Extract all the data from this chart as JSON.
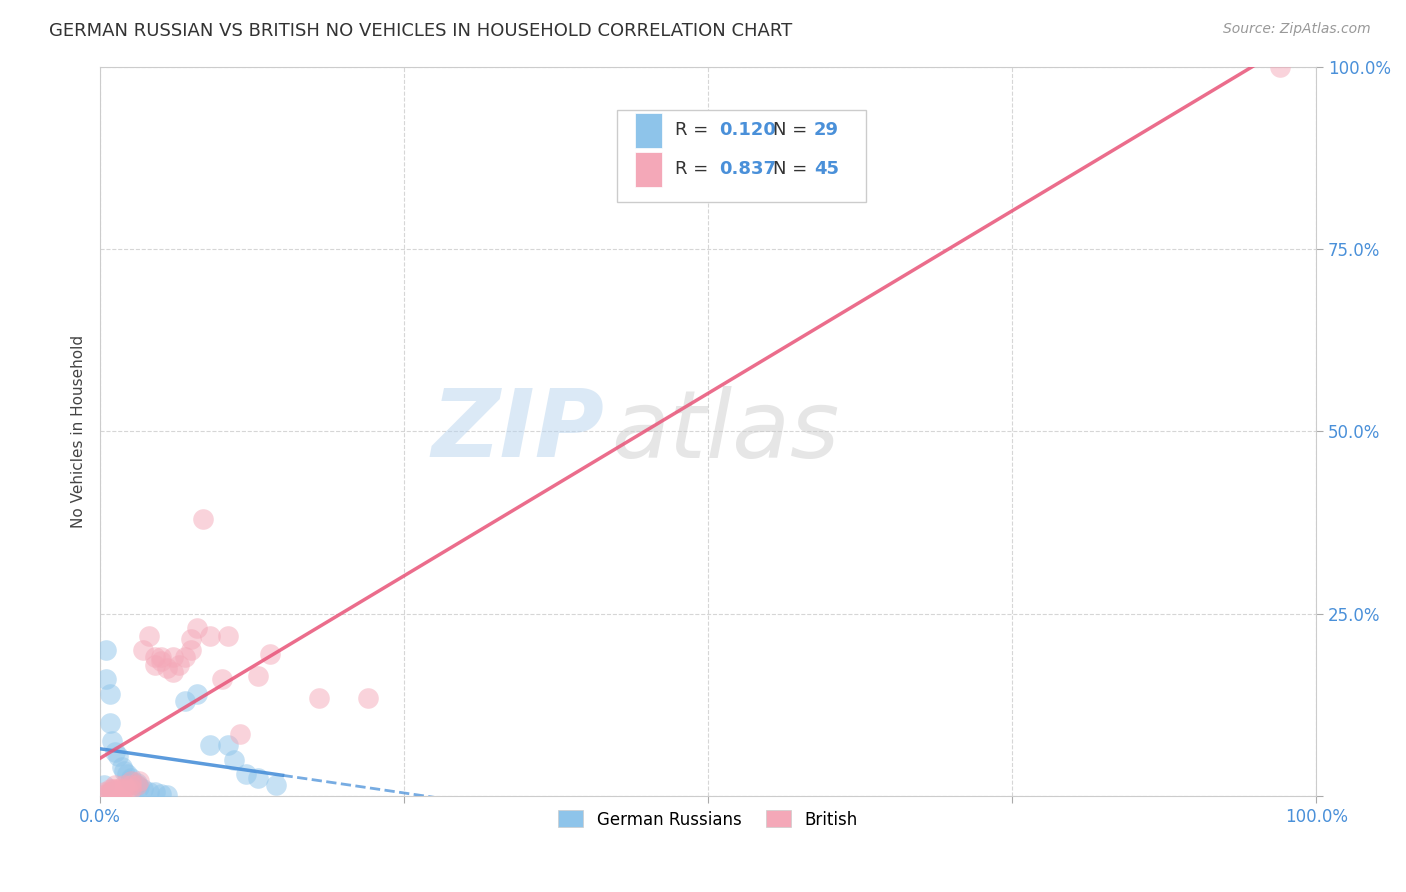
{
  "title": "GERMAN RUSSIAN VS BRITISH NO VEHICLES IN HOUSEHOLD CORRELATION CHART",
  "source": "Source: ZipAtlas.com",
  "ylabel": "No Vehicles in Household",
  "watermark": "ZIPatlas",
  "background_color": "#ffffff",
  "plot_bg_color": "#ffffff",
  "grid_color": "#cccccc",
  "blue_color": "#8ec4ea",
  "pink_color": "#f4a8b8",
  "blue_line_color": "#4a90d9",
  "pink_line_color": "#e85478",
  "german_russian_points": [
    [
      0.5,
      20.0
    ],
    [
      0.5,
      16.0
    ],
    [
      0.8,
      14.0
    ],
    [
      0.8,
      10.0
    ],
    [
      1.0,
      7.5
    ],
    [
      1.2,
      6.0
    ],
    [
      1.5,
      5.5
    ],
    [
      1.8,
      4.0
    ],
    [
      2.0,
      3.5
    ],
    [
      2.2,
      3.0
    ],
    [
      2.5,
      2.5
    ],
    [
      2.5,
      2.0
    ],
    [
      3.0,
      1.8
    ],
    [
      3.0,
      1.5
    ],
    [
      3.2,
      1.2
    ],
    [
      3.5,
      1.0
    ],
    [
      4.0,
      0.5
    ],
    [
      4.5,
      0.5
    ],
    [
      5.0,
      0.3
    ],
    [
      5.5,
      0.2
    ],
    [
      7.0,
      13.0
    ],
    [
      8.0,
      14.0
    ],
    [
      9.0,
      7.0
    ],
    [
      10.5,
      7.0
    ],
    [
      11.0,
      5.0
    ],
    [
      12.0,
      3.0
    ],
    [
      13.0,
      2.5
    ],
    [
      14.5,
      1.5
    ],
    [
      0.3,
      1.5
    ]
  ],
  "british_points": [
    [
      0.3,
      0.5
    ],
    [
      0.5,
      0.3
    ],
    [
      0.8,
      0.5
    ],
    [
      0.8,
      1.0
    ],
    [
      1.0,
      0.5
    ],
    [
      1.0,
      1.0
    ],
    [
      1.2,
      0.5
    ],
    [
      1.2,
      1.0
    ],
    [
      1.2,
      1.5
    ],
    [
      1.5,
      0.5
    ],
    [
      1.5,
      1.0
    ],
    [
      1.8,
      0.5
    ],
    [
      1.8,
      1.0
    ],
    [
      2.0,
      1.0
    ],
    [
      2.0,
      1.5
    ],
    [
      2.2,
      1.0
    ],
    [
      2.5,
      1.0
    ],
    [
      2.5,
      1.5
    ],
    [
      2.5,
      2.0
    ],
    [
      3.0,
      1.5
    ],
    [
      3.2,
      2.0
    ],
    [
      3.5,
      20.0
    ],
    [
      4.0,
      22.0
    ],
    [
      4.5,
      18.0
    ],
    [
      4.5,
      19.0
    ],
    [
      5.0,
      19.0
    ],
    [
      5.0,
      18.5
    ],
    [
      5.5,
      17.5
    ],
    [
      6.0,
      17.0
    ],
    [
      6.0,
      19.0
    ],
    [
      6.5,
      18.0
    ],
    [
      7.0,
      19.0
    ],
    [
      7.5,
      20.0
    ],
    [
      7.5,
      21.5
    ],
    [
      8.0,
      23.0
    ],
    [
      8.5,
      38.0
    ],
    [
      9.0,
      22.0
    ],
    [
      10.0,
      16.0
    ],
    [
      10.5,
      22.0
    ],
    [
      11.5,
      8.5
    ],
    [
      13.0,
      16.5
    ],
    [
      14.0,
      19.5
    ],
    [
      18.0,
      13.5
    ],
    [
      22.0,
      13.5
    ],
    [
      97.0,
      100.0
    ]
  ],
  "xlim": [
    0,
    100
  ],
  "ylim": [
    0,
    100
  ],
  "xticks": [
    0,
    25,
    50,
    75,
    100
  ],
  "yticks": [
    0,
    25,
    50,
    75,
    100
  ],
  "xtick_labels_display": [
    "0.0%",
    "",
    "",
    "",
    "100.0%"
  ],
  "ytick_labels_display": [
    "",
    "25.0%",
    "50.0%",
    "75.0%",
    "100.0%"
  ]
}
